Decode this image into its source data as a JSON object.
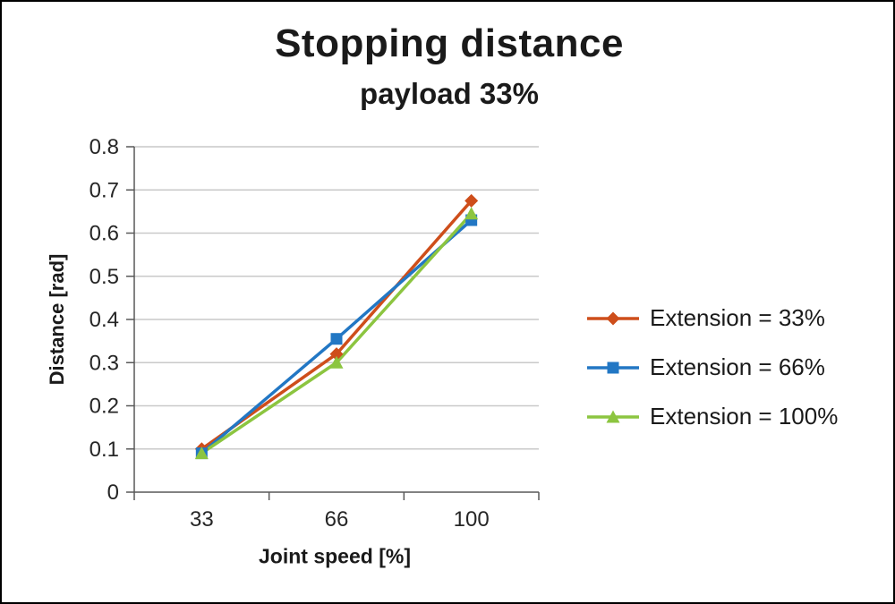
{
  "chart_data": {
    "type": "line",
    "title": "Stopping distance",
    "subtitle": "payload 33%",
    "xlabel": "Joint speed [%]",
    "ylabel": "Distance [rad]",
    "categories": [
      "33",
      "66",
      "100"
    ],
    "ylim": [
      0,
      0.8
    ],
    "y_ticks": [
      "0",
      "0.1",
      "0.2",
      "0.3",
      "0.4",
      "0.5",
      "0.6",
      "0.7",
      "0.8"
    ],
    "grid": true,
    "legend_position": "right",
    "series": [
      {
        "name": "Extension = 33%",
        "marker": "diamond",
        "color": "#CE4E1B",
        "values": [
          0.1,
          0.32,
          0.675
        ]
      },
      {
        "name": "Extension = 66%",
        "marker": "square",
        "color": "#2277C4",
        "values": [
          0.09,
          0.355,
          0.63
        ]
      },
      {
        "name": "Extension = 100%",
        "marker": "triangle",
        "color": "#8CC540",
        "values": [
          0.09,
          0.3,
          0.645
        ]
      }
    ],
    "style": {
      "grid_color": "#C9C9C9",
      "axis_color": "#595959",
      "text_color": "#262626"
    }
  }
}
